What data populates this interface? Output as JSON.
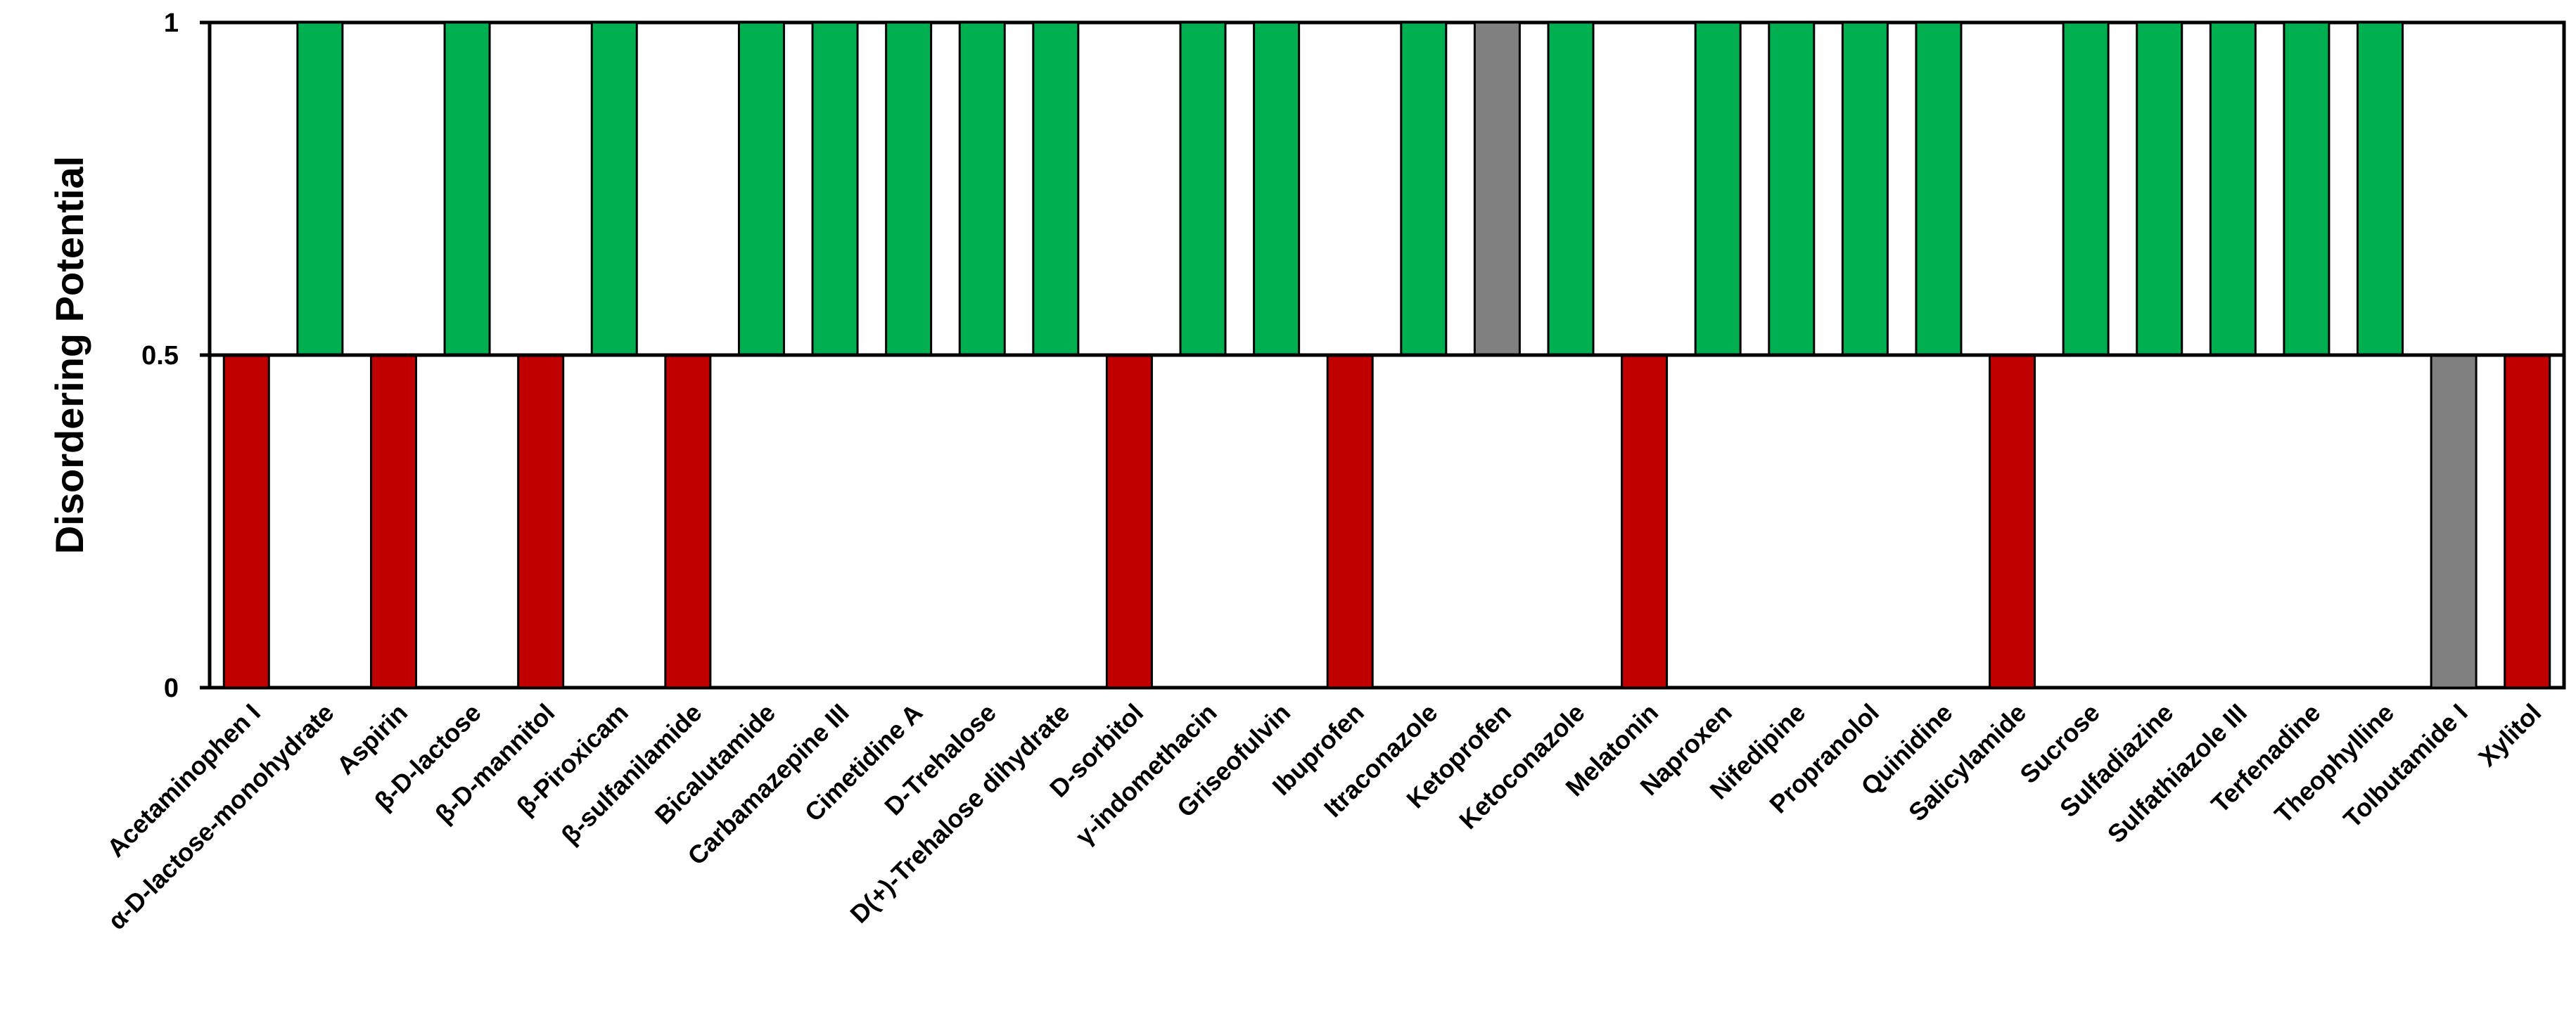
{
  "chart_data": {
    "type": "bar",
    "ylabel": "Disordering Potential",
    "xlabel": "",
    "ylim": [
      0,
      1
    ],
    "yticks": [
      "0",
      "0.5",
      "1"
    ],
    "baseline": 0.5,
    "grid": false,
    "legend": "none",
    "colors": {
      "positive": "#00b050",
      "negative": "#c00000",
      "neutral": "#808080"
    },
    "categories": [
      "Acetaminophen I",
      "α-D-lactose-monohydrate",
      "Aspirin",
      "β-D-lactose",
      "β-D-mannitol",
      "β-Piroxicam",
      "β-sulfanilamide",
      "Bicalutamide",
      "Carbamazepine III",
      "Cimetidine A",
      "D-Trehalose",
      "D(+)-Trehalose dihydrate",
      "D-sorbitol",
      "γ-indomethacin",
      "Griseofulvin",
      "Ibuprofen",
      "Itraconazole",
      "Ketoprofen",
      "Ketoconazole",
      "Melatonin",
      "Naproxen",
      "Nifedipine",
      "Propranolol",
      "Quinidine",
      "Salicylamide",
      "Sucrose",
      "Sulfadiazine",
      "Sulfathiazole III",
      "Terfenadine",
      "Theophylline",
      "Tolbutamide I",
      "Xylitol"
    ],
    "values": [
      0,
      1,
      0,
      1,
      0,
      1,
      0,
      1,
      1,
      1,
      1,
      1,
      0,
      1,
      1,
      0,
      1,
      1,
      1,
      0,
      1,
      1,
      1,
      1,
      0,
      1,
      1,
      1,
      1,
      1,
      0,
      0
    ],
    "bar_colors": [
      "negative",
      "positive",
      "negative",
      "positive",
      "negative",
      "positive",
      "negative",
      "positive",
      "positive",
      "positive",
      "positive",
      "positive",
      "negative",
      "positive",
      "positive",
      "negative",
      "positive",
      "neutral",
      "positive",
      "negative",
      "positive",
      "positive",
      "positive",
      "positive",
      "negative",
      "positive",
      "positive",
      "positive",
      "positive",
      "positive",
      "neutral",
      "negative"
    ]
  }
}
